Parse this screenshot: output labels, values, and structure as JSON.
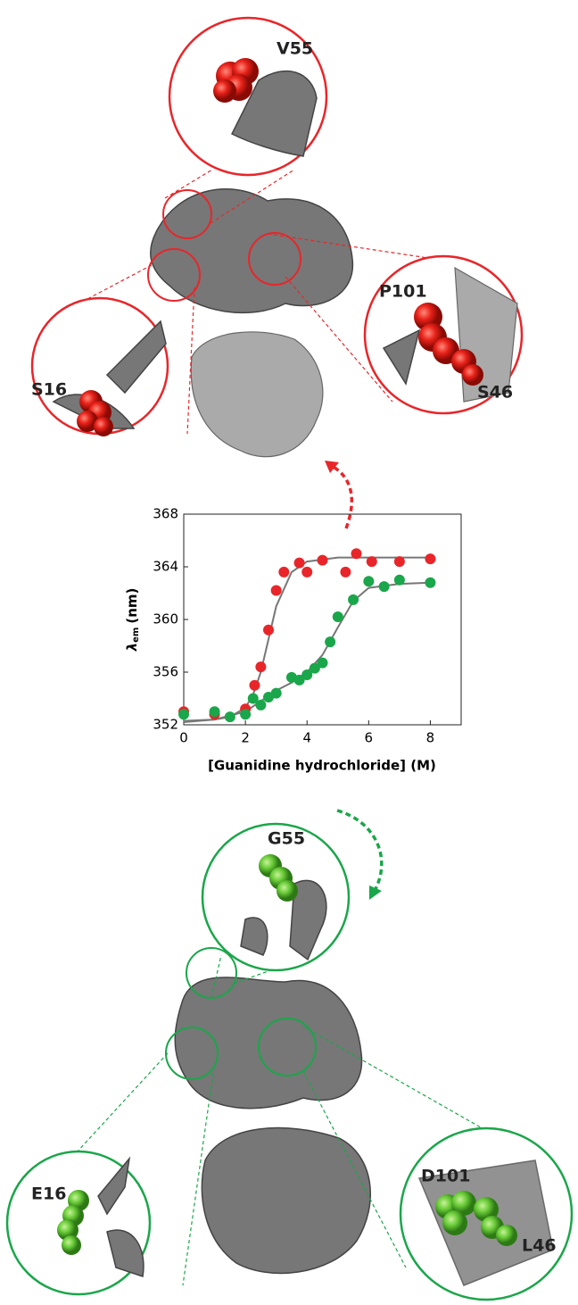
{
  "chart_data": {
    "type": "scatter",
    "xlabel": "[Guanidine hydrochloride] (M)",
    "ylabel": [
      "λ",
      "em",
      "(nm)"
    ],
    "xlim": [
      0,
      9
    ],
    "xticks": [
      0,
      2,
      4,
      6,
      8
    ],
    "ylim": [
      352,
      368
    ],
    "yticks": [
      352,
      356,
      360,
      364,
      368
    ],
    "series": [
      {
        "color": "#e8262a",
        "x": [
          0,
          1,
          2,
          2.3,
          2.5,
          2.75,
          3,
          3.25,
          3.75,
          4,
          4.5,
          5.25,
          5.6,
          6.1,
          7,
          8
        ],
        "values": [
          353.0,
          352.8,
          353.2,
          355.0,
          356.4,
          359.2,
          362.2,
          363.6,
          364.3,
          363.6,
          364.5,
          363.6,
          365.0,
          364.4,
          364.4,
          364.6
        ]
      },
      {
        "color": "#1aa64a",
        "x": [
          0,
          1,
          1.5,
          2,
          2.25,
          2.5,
          2.75,
          3,
          3.5,
          3.75,
          4,
          4.25,
          4.5,
          4.75,
          5,
          5.5,
          6,
          6.5,
          7,
          8
        ],
        "values": [
          352.8,
          353.0,
          352.6,
          352.8,
          354.0,
          353.5,
          354.1,
          354.4,
          355.6,
          355.4,
          355.8,
          356.3,
          356.7,
          358.3,
          360.2,
          361.5,
          362.9,
          362.5,
          363.0,
          362.8
        ]
      }
    ],
    "fits": [
      {
        "color": "#777777",
        "x": [
          0,
          1,
          1.5,
          2,
          2.25,
          2.5,
          2.75,
          3,
          3.5,
          4,
          5,
          6,
          8
        ],
        "values": [
          352.3,
          352.4,
          352.6,
          353.3,
          354.3,
          356.0,
          358.5,
          361.0,
          363.6,
          364.4,
          364.7,
          364.7,
          364.7
        ]
      },
      {
        "color": "#777777",
        "x": [
          0,
          1,
          2,
          2.5,
          3,
          3.5,
          4,
          4.5,
          5,
          5.5,
          6,
          7,
          8
        ],
        "values": [
          352.2,
          352.4,
          353.0,
          353.8,
          354.6,
          355.2,
          356.0,
          357.3,
          359.4,
          361.4,
          362.4,
          362.7,
          362.8
        ]
      }
    ]
  },
  "residues": [
    "V55",
    "S16",
    "P101",
    "S46",
    "G55",
    "E16",
    "D101",
    "L46"
  ]
}
